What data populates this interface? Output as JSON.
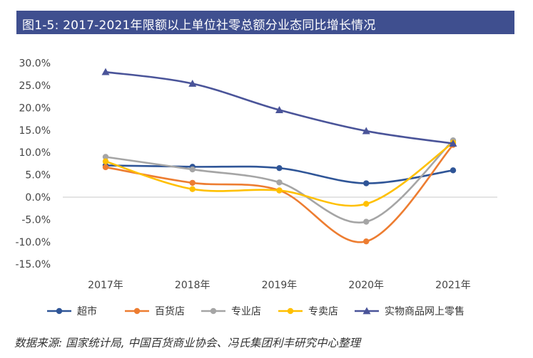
{
  "title": "图1-5: 2017-2021年限额以上单位社零总额分业态同比增长情况",
  "source": "数据来源: 国家统计局, 中国百货商业协会、冯氏集团利丰研究中心整理",
  "chart_data": {
    "type": "line",
    "title": "图1-5: 2017-2021年限额以上单位社零总额分业态同比增长情况",
    "categories": [
      "2017年",
      "2018年",
      "2019年",
      "2020年",
      "2021年"
    ],
    "ylim": [
      -15,
      30
    ],
    "yticks": [
      30,
      25,
      20,
      15,
      10,
      5,
      0,
      -5,
      -10,
      -15
    ],
    "ytick_labels": [
      "30.0%",
      "25.0%",
      "20.0%",
      "15.0%",
      "10.0%",
      "5.0%",
      "0.0%",
      "-5.0%",
      "-10.0%",
      "-15.0%"
    ],
    "grid": false,
    "legend_position": "bottom",
    "series": [
      {
        "name": "超市",
        "color": "#2f5597",
        "marker": "circle",
        "values": [
          7.1,
          6.8,
          6.5,
          3.1,
          6.0
        ]
      },
      {
        "name": "百货店",
        "color": "#ed7d31",
        "marker": "circle",
        "values": [
          6.7,
          3.2,
          1.5,
          -9.9,
          11.7
        ]
      },
      {
        "name": "专业店",
        "color": "#a5a5a5",
        "marker": "circle",
        "values": [
          9.0,
          6.2,
          3.3,
          -5.5,
          12.7
        ]
      },
      {
        "name": "专卖店",
        "color": "#ffc000",
        "marker": "circle",
        "values": [
          8.0,
          1.8,
          1.5,
          -1.5,
          12.2
        ]
      },
      {
        "name": "实物商品网上零售",
        "color": "#4a5499",
        "marker": "triangle",
        "values": [
          28.0,
          25.4,
          19.5,
          14.8,
          12.0
        ]
      }
    ]
  }
}
